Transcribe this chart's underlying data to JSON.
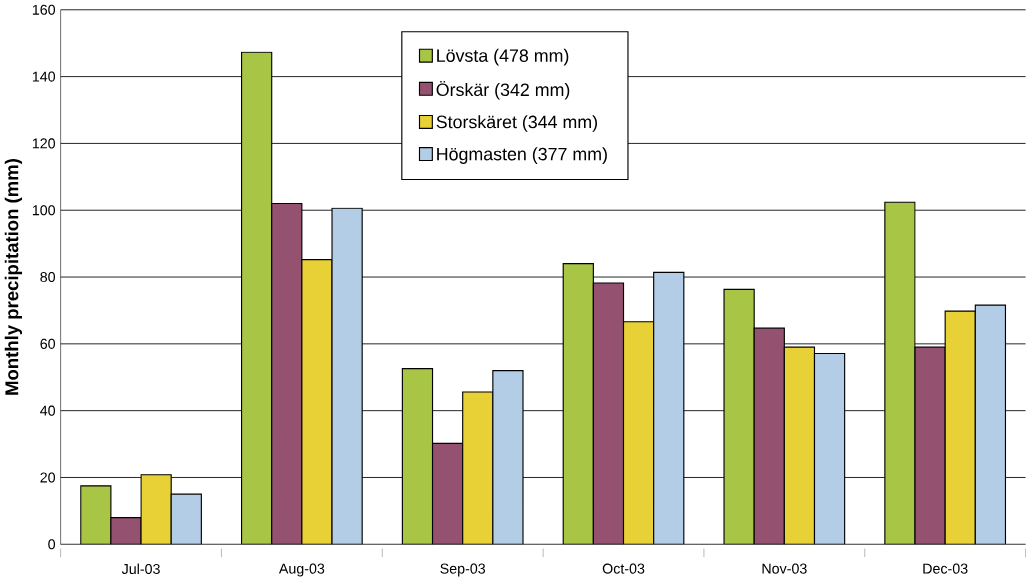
{
  "chart_data": {
    "type": "bar",
    "ylabel": "Monthly precipitation (mm)",
    "categories": [
      "Jul-03",
      "Aug-03",
      "Sep-03",
      "Oct-03",
      "Nov-03",
      "Dec-03"
    ],
    "series": [
      {
        "name": "Lövsta (478 mm)",
        "color": "#a8c545",
        "values": [
          17.5,
          147.3,
          52.6,
          84,
          76.3,
          102.4
        ]
      },
      {
        "name": "Örskär (342 mm)",
        "color": "#955270",
        "values": [
          8,
          102,
          30.2,
          78.2,
          64.7,
          59
        ]
      },
      {
        "name": "Storskäret (344 mm)",
        "color": "#e8d137",
        "values": [
          20.8,
          85.2,
          45.6,
          66.6,
          59,
          69.8
        ]
      },
      {
        "name": "Högmasten (377 mm)",
        "color": "#b4cde6",
        "values": [
          15,
          100.6,
          52,
          81.4,
          57.1,
          71.6
        ]
      }
    ],
    "ylim": [
      0,
      160
    ],
    "yticks": [
      0,
      20,
      40,
      60,
      80,
      100,
      120,
      140,
      160
    ],
    "grid": "y",
    "legend": "top"
  }
}
